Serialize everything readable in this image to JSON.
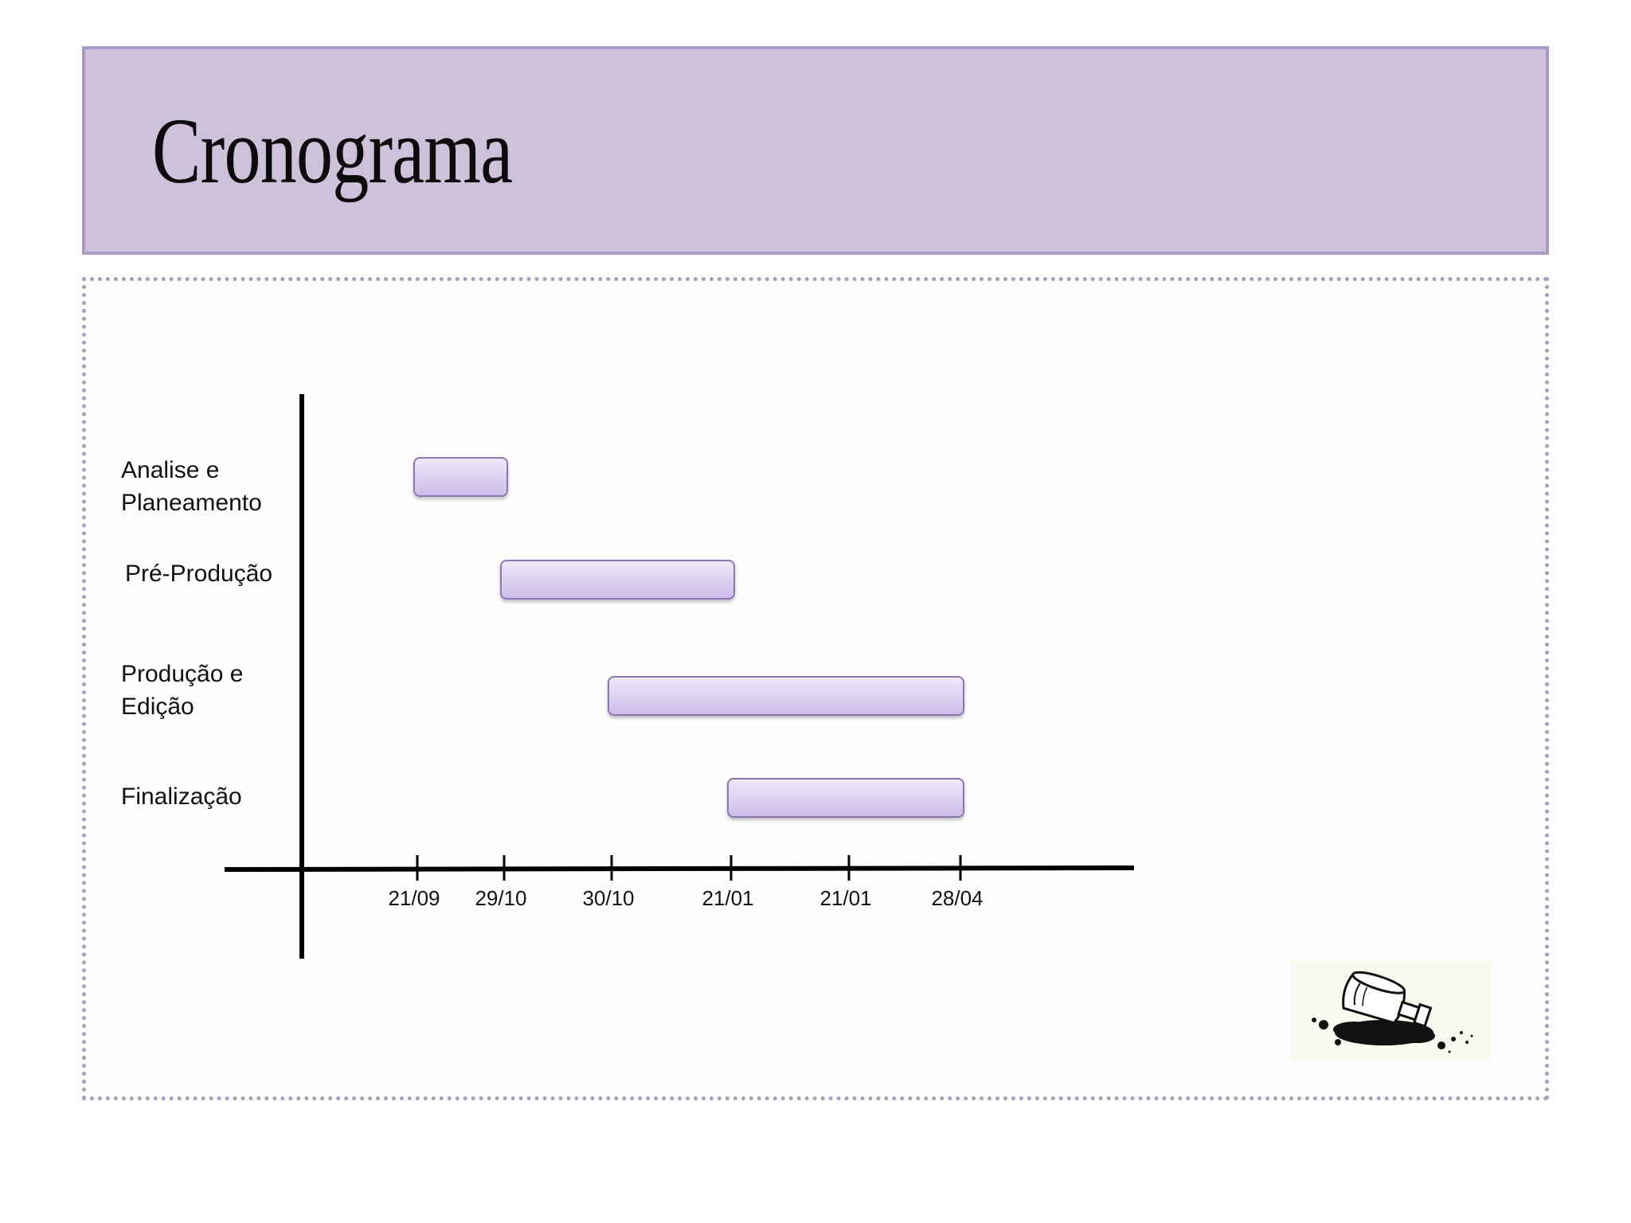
{
  "slide": {
    "title": "Cronograma"
  },
  "chart_data": {
    "type": "gantt",
    "categories": [
      [
        "Analise e",
        "Planeamento"
      ],
      [
        "Pré-Produção"
      ],
      [
        "Produção e",
        "Edição"
      ],
      [
        "Finalização"
      ]
    ],
    "ticks": [
      "21/09",
      "29/10",
      "30/10",
      "21/01",
      "21/01",
      "28/04"
    ],
    "tasks": [
      {
        "category_index": 0,
        "start_tick": 0,
        "end_tick": 1
      },
      {
        "category_index": 1,
        "start_tick": 1,
        "end_tick": 3
      },
      {
        "category_index": 2,
        "start_tick": 2,
        "end_tick": 5
      },
      {
        "category_index": 3,
        "start_tick": 3,
        "end_tick": 5
      }
    ],
    "bar_color_top": "#f0e9fa",
    "bar_color_bottom": "#cbbbe8",
    "bar_border": "#8a78b4",
    "axis_color": "#000000"
  },
  "colors": {
    "title_band": "#cdc2da",
    "title_border": "#a79cc6",
    "content_border": "#a49fc0"
  },
  "logo": {
    "icon": "spilled-ink-bottle-icon"
  }
}
